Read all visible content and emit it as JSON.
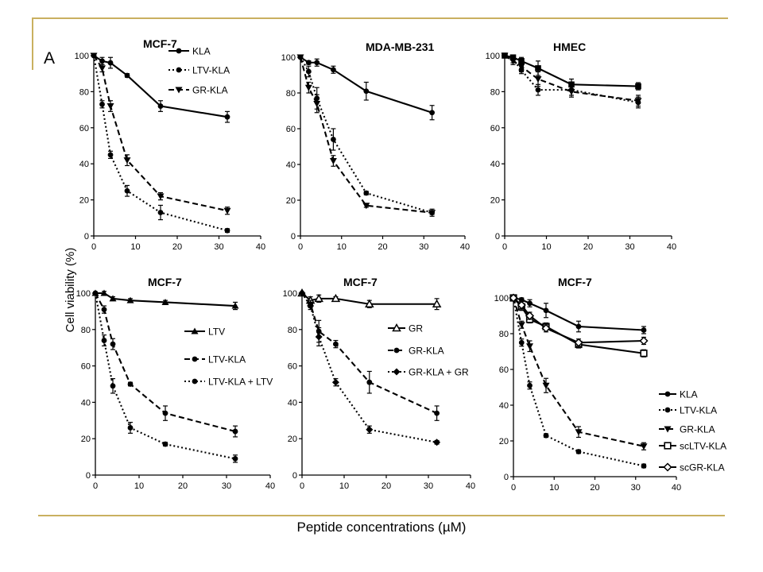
{
  "figure": {
    "panel_letter": "A",
    "ylabel": "Cell viability (%)",
    "xlabel": "Peptide concentrations (µM)"
  },
  "chart_data": [
    {
      "type": "line",
      "title": "MCF-7",
      "xlim": [
        0,
        40
      ],
      "ylim": [
        0,
        100
      ],
      "xticks": [
        0,
        10,
        20,
        30,
        40
      ],
      "yticks": [
        0,
        20,
        40,
        60,
        80,
        100
      ],
      "x": [
        0,
        2,
        4,
        8,
        16,
        32
      ],
      "legend_placement": "top-right",
      "series": [
        {
          "name": "KLA",
          "values": [
            100,
            97,
            96,
            89,
            72,
            66
          ],
          "errors": [
            0,
            2,
            3,
            1,
            3,
            3
          ],
          "marker": "circle",
          "dash": "solid"
        },
        {
          "name": "LTV-KLA",
          "values": [
            100,
            73,
            45,
            25,
            13,
            3
          ],
          "errors": [
            0,
            2,
            2,
            3,
            4,
            1
          ],
          "marker": "circle",
          "dash": "dotted"
        },
        {
          "name": "GR-KLA",
          "values": [
            100,
            93,
            72,
            42,
            22,
            14
          ],
          "errors": [
            0,
            2,
            3,
            3,
            2,
            2
          ],
          "marker": "triangle-down",
          "dash": "dashed"
        }
      ]
    },
    {
      "type": "line",
      "title": "MDA-MB-231",
      "xlim": [
        0,
        40
      ],
      "ylim": [
        0,
        100
      ],
      "xticks": [
        0,
        10,
        20,
        30,
        40
      ],
      "yticks": [
        0,
        20,
        40,
        60,
        80,
        100
      ],
      "x": [
        0,
        2,
        4,
        8,
        16,
        32
      ],
      "series": [
        {
          "values": [
            100,
            97,
            97,
            93,
            81,
            69
          ],
          "errors": [
            0,
            1,
            2,
            2,
            5,
            4
          ],
          "marker": "circle",
          "dash": "solid"
        },
        {
          "values": [
            100,
            83,
            74,
            42,
            17,
            13
          ],
          "errors": [
            0,
            3,
            5,
            3,
            1,
            2
          ],
          "marker": "triangle-down",
          "dash": "dashed"
        },
        {
          "values": [
            100,
            92,
            77,
            54,
            24,
            13
          ],
          "errors": [
            0,
            3,
            6,
            6,
            1,
            1
          ],
          "marker": "circle",
          "dash": "dotted"
        }
      ]
    },
    {
      "type": "line",
      "title": "HMEC",
      "xlim": [
        0,
        40
      ],
      "ylim": [
        0,
        100
      ],
      "xticks": [
        0,
        10,
        20,
        30,
        40
      ],
      "yticks": [
        0,
        20,
        40,
        60,
        80,
        100
      ],
      "x": [
        0,
        2,
        4,
        8,
        16,
        32
      ],
      "series": [
        {
          "values": [
            100,
            99,
            97,
            93,
            84,
            83
          ],
          "errors": [
            0,
            1,
            2,
            4,
            3,
            2
          ],
          "marker": "square",
          "dash": "solid"
        },
        {
          "values": [
            100,
            98,
            92,
            81,
            81,
            74
          ],
          "errors": [
            0,
            2,
            2,
            3,
            3,
            3
          ],
          "marker": "circle",
          "dash": "dotted"
        },
        {
          "values": [
            100,
            97,
            94,
            87,
            80,
            75
          ],
          "errors": [
            0,
            2,
            3,
            4,
            3,
            3
          ],
          "marker": "triangle-down",
          "dash": "dashed"
        }
      ]
    },
    {
      "type": "line",
      "title": "MCF-7",
      "xlim": [
        0,
        40
      ],
      "ylim": [
        0,
        100
      ],
      "xticks": [
        0,
        10,
        20,
        30,
        40
      ],
      "yticks": [
        0,
        20,
        40,
        60,
        80,
        100
      ],
      "x": [
        0,
        2,
        4,
        8,
        16,
        32
      ],
      "legend_placement": "bottom-right",
      "series": [
        {
          "name": "LTV",
          "values": [
            100,
            100,
            97,
            96,
            95,
            93
          ],
          "errors": [
            0,
            1,
            1,
            1,
            1,
            2
          ],
          "marker": "triangle-up",
          "dash": "solid"
        },
        {
          "name": "LTV-KLA",
          "values": [
            100,
            91,
            72,
            50,
            34,
            24
          ],
          "errors": [
            0,
            2,
            3,
            1,
            4,
            3
          ],
          "marker": "circle",
          "dash": "dashed"
        },
        {
          "name": "LTV-KLA + LTV",
          "values": [
            100,
            74,
            49,
            26,
            17,
            9
          ],
          "errors": [
            0,
            3,
            4,
            3,
            1,
            2
          ],
          "marker": "circle",
          "dash": "dotted"
        }
      ]
    },
    {
      "type": "line",
      "title": "MCF-7",
      "xlim": [
        0,
        40
      ],
      "ylim": [
        0,
        100
      ],
      "xticks": [
        0,
        10,
        20,
        30,
        40
      ],
      "yticks": [
        0,
        20,
        40,
        60,
        80,
        100
      ],
      "x": [
        0,
        2,
        4,
        8,
        16,
        32
      ],
      "legend_placement": "center-right",
      "series": [
        {
          "name": "GR",
          "values": [
            100,
            96,
            97,
            97,
            94,
            94
          ],
          "errors": [
            0,
            2,
            2,
            1,
            2,
            3
          ],
          "marker": "triangle-up-open",
          "dash": "solid"
        },
        {
          "name": "GR-KLA",
          "values": [
            100,
            94,
            79,
            72,
            51,
            34
          ],
          "errors": [
            0,
            2,
            6,
            2,
            6,
            4
          ],
          "marker": "circle",
          "dash": "dashed"
        },
        {
          "name": "GR-KLA + GR",
          "values": [
            100,
            93,
            76,
            51,
            25,
            18
          ],
          "errors": [
            0,
            2,
            5,
            2,
            2,
            1
          ],
          "marker": "diamond",
          "dash": "dotted"
        }
      ]
    },
    {
      "type": "line",
      "title": "MCF-7",
      "xlim": [
        0,
        40
      ],
      "ylim": [
        0,
        100
      ],
      "xticks": [
        0,
        10,
        20,
        30,
        40
      ],
      "yticks": [
        0,
        20,
        40,
        60,
        80,
        100
      ],
      "x": [
        0,
        2,
        4,
        8,
        16,
        32
      ],
      "legend_placement": "bottom-right",
      "series": [
        {
          "name": "KLA",
          "values": [
            100,
            99,
            97,
            93,
            84,
            82
          ],
          "errors": [
            0,
            1,
            2,
            4,
            3,
            2
          ],
          "marker": "circle",
          "dash": "solid"
        },
        {
          "name": "LTV-KLA",
          "values": [
            100,
            75,
            51,
            23,
            14,
            6
          ],
          "errors": [
            0,
            2,
            2,
            1,
            1,
            1
          ],
          "marker": "circle",
          "dash": "dotted"
        },
        {
          "name": "GR-KLA",
          "values": [
            100,
            85,
            73,
            51,
            25,
            17
          ],
          "errors": [
            0,
            2,
            3,
            4,
            3,
            2
          ],
          "marker": "triangle-down",
          "dash": "dashed"
        },
        {
          "name": "scLTV-KLA",
          "values": [
            100,
            95,
            88,
            84,
            74,
            69
          ],
          "errors": [
            0,
            2,
            2,
            2,
            2,
            2
          ],
          "marker": "square-open",
          "dash": "solid"
        },
        {
          "name": "scGR-KLA",
          "values": [
            100,
            96,
            90,
            83,
            75,
            76
          ],
          "errors": [
            0,
            2,
            2,
            2,
            2,
            2
          ],
          "marker": "diamond-open",
          "dash": "solid"
        }
      ]
    }
  ]
}
